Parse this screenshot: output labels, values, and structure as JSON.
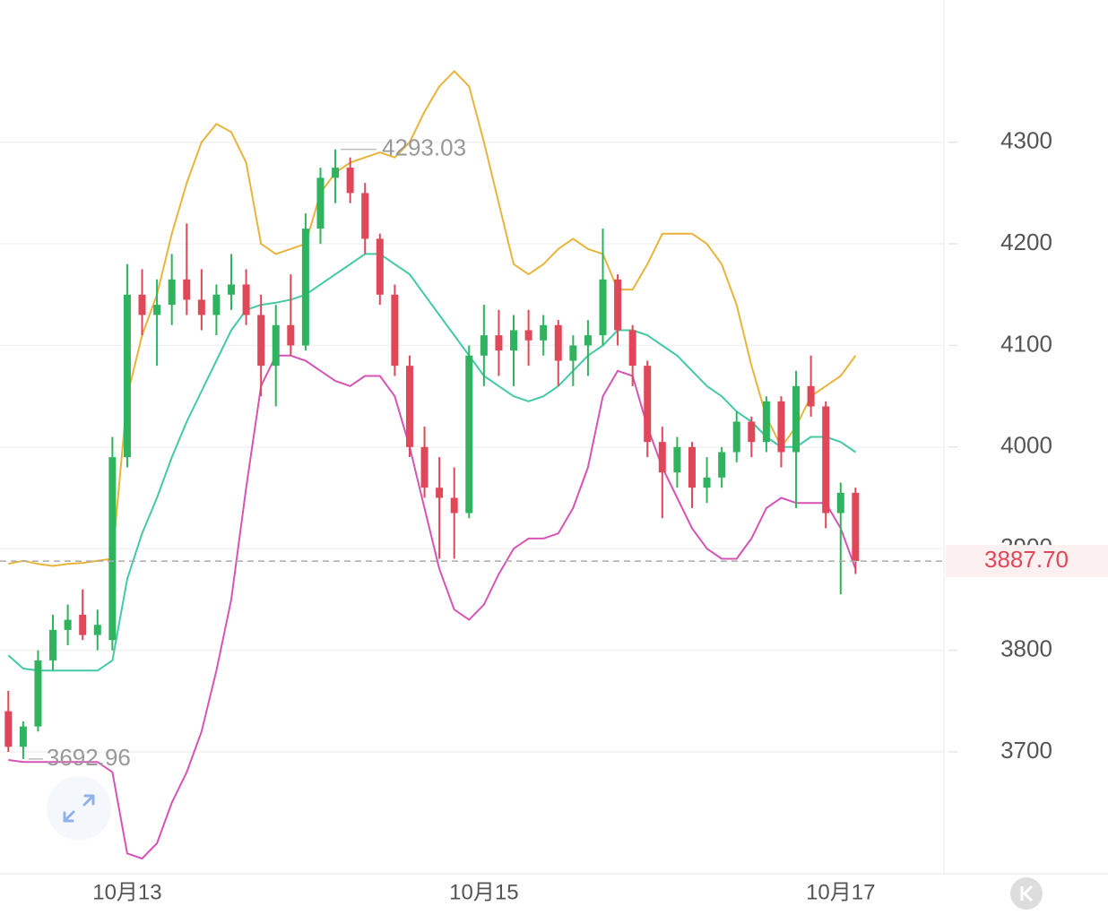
{
  "chart_data": {
    "type": "candlestick",
    "categories": [
      null,
      null,
      null,
      null,
      null,
      null,
      null,
      null,
      "10月13",
      null,
      null,
      null,
      null,
      null,
      null,
      null,
      null,
      null,
      null,
      null,
      null,
      null,
      null,
      null,
      null,
      null,
      null,
      null,
      null,
      null,
      null,
      null,
      "10月15",
      null,
      null,
      null,
      null,
      null,
      null,
      null,
      null,
      null,
      null,
      null,
      null,
      null,
      null,
      null,
      null,
      null,
      null,
      null,
      null,
      null,
      null,
      null,
      "10月17",
      null
    ],
    "open": [
      3740,
      3705,
      3725,
      3790,
      3820,
      3835,
      3815,
      3810,
      3990,
      4150,
      4130,
      4140,
      4165,
      4145,
      4130,
      4150,
      4160,
      4130,
      4080,
      4120,
      4100,
      4215,
      4265,
      4275,
      4250,
      4205,
      4150,
      4080,
      4000,
      3960,
      3950,
      3935,
      4090,
      4110,
      4095,
      4115,
      4105,
      4120,
      4085,
      4100,
      4110,
      4165,
      4115,
      4080,
      4005,
      3975,
      4000,
      3960,
      3970,
      3995,
      4025,
      4005,
      4045,
      3995,
      4060,
      4040,
      3935,
      3955
    ],
    "high": [
      3760,
      3730,
      3800,
      3835,
      3845,
      3860,
      3840,
      4010,
      4180,
      4175,
      4165,
      4190,
      4220,
      4175,
      4160,
      4190,
      4175,
      4150,
      4140,
      4170,
      4230,
      4275,
      4293.03,
      4285,
      4260,
      4210,
      4160,
      4090,
      4020,
      3990,
      3980,
      4100,
      4140,
      4135,
      4130,
      4135,
      4130,
      4125,
      4110,
      4125,
      4215,
      4170,
      4120,
      4085,
      4020,
      4010,
      4005,
      3990,
      4000,
      4035,
      4030,
      4050,
      4050,
      4075,
      4090,
      4045,
      3965,
      3960
    ],
    "low": [
      3700,
      3692.96,
      3720,
      3780,
      3805,
      3810,
      3800,
      3800,
      3980,
      4110,
      4080,
      4120,
      4130,
      4115,
      4110,
      4135,
      4120,
      4050,
      4040,
      4090,
      4095,
      4200,
      4240,
      4240,
      4190,
      4140,
      4070,
      3990,
      3950,
      3890,
      3890,
      3930,
      4060,
      4070,
      4060,
      4080,
      4090,
      4060,
      4060,
      4070,
      4100,
      4100,
      4060,
      3990,
      3930,
      3960,
      3940,
      3945,
      3960,
      3985,
      3990,
      3995,
      3980,
      3940,
      4030,
      3920,
      3855,
      3875
    ],
    "close": [
      3705,
      3725,
      3790,
      3820,
      3830,
      3815,
      3825,
      3990,
      4150,
      4130,
      4140,
      4165,
      4145,
      4130,
      4150,
      4160,
      4130,
      4080,
      4120,
      4100,
      4215,
      4265,
      4275,
      4250,
      4205,
      4150,
      4080,
      4000,
      3960,
      3950,
      3935,
      4090,
      4110,
      4095,
      4115,
      4105,
      4120,
      4085,
      4100,
      4110,
      4165,
      4115,
      4080,
      4005,
      3975,
      4000,
      3960,
      3970,
      3995,
      4025,
      4005,
      4045,
      3995,
      4060,
      4040,
      3935,
      3955,
      3887.7
    ],
    "up_color": "#2fb35f",
    "down_color": "#e0485a",
    "last_label": "3887.70",
    "series": [
      {
        "color": "#e8b43c",
        "values": [
          3885,
          3888,
          3885,
          3883,
          3885,
          3886,
          3888,
          3890,
          4050,
          4110,
          4150,
          4210,
          4260,
          4300,
          4318,
          4310,
          4280,
          4200,
          4190,
          4195,
          4200,
          4250,
          4270,
          4280,
          4285,
          4290,
          4285,
          4300,
          4330,
          4355,
          4370,
          4355,
          4300,
          4240,
          4180,
          4170,
          4180,
          4195,
          4205,
          4195,
          4190,
          4155,
          4155,
          4180,
          4210,
          4210,
          4210,
          4200,
          4180,
          4140,
          4080,
          4030,
          4000,
          4020,
          4050,
          4060,
          4070,
          4090
        ]
      },
      {
        "color": "#43c9a5",
        "values": [
          3795,
          3782,
          3780,
          3780,
          3780,
          3780,
          3780,
          3790,
          3870,
          3915,
          3950,
          3990,
          4025,
          4055,
          4085,
          4115,
          4135,
          4140,
          4142,
          4145,
          4150,
          4160,
          4170,
          4180,
          4190,
          4190,
          4180,
          4170,
          4150,
          4130,
          4110,
          4090,
          4070,
          4060,
          4050,
          4045,
          4050,
          4060,
          4075,
          4090,
          4100,
          4115,
          4115,
          4110,
          4100,
          4090,
          4075,
          4060,
          4050,
          4035,
          4025,
          4010,
          4000,
          4000,
          4010,
          4010,
          4005,
          3995
        ]
      },
      {
        "color": "#d654b4",
        "values": [
          3692,
          3690,
          3690,
          3690,
          3690,
          3690,
          3690,
          3680,
          3600,
          3595,
          3610,
          3650,
          3680,
          3720,
          3780,
          3850,
          3960,
          4060,
          4090,
          4090,
          4085,
          4075,
          4065,
          4060,
          4070,
          4070,
          4050,
          4000,
          3940,
          3880,
          3840,
          3830,
          3845,
          3875,
          3900,
          3910,
          3910,
          3915,
          3940,
          3980,
          4050,
          4075,
          4070,
          4020,
          3980,
          3950,
          3920,
          3900,
          3890,
          3890,
          3910,
          3940,
          3950,
          3945,
          3945,
          3945,
          3920,
          3880
        ]
      }
    ],
    "ylim": [
      3580,
      4440
    ],
    "yticks": [
      3700,
      3800,
      3900,
      4000,
      4100,
      4200,
      4300
    ],
    "grid": true
  }
}
